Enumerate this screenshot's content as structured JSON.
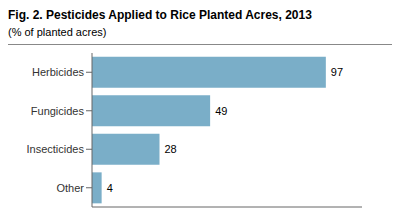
{
  "chart_data": {
    "type": "bar",
    "title": "Fig. 2. Pesticides Applied to Rice Planted Acres, 2013",
    "subtitle": "(% of planted acres)",
    "categories": [
      "Herbicides",
      "Fungicides",
      "Insecticides",
      "Other"
    ],
    "values": [
      97,
      49,
      28,
      4
    ],
    "color": "#7aaec8",
    "orientation": "horizontal",
    "xlim": [
      0,
      112
    ],
    "data_labels": true,
    "tick_labels": "y",
    "grid": false
  }
}
